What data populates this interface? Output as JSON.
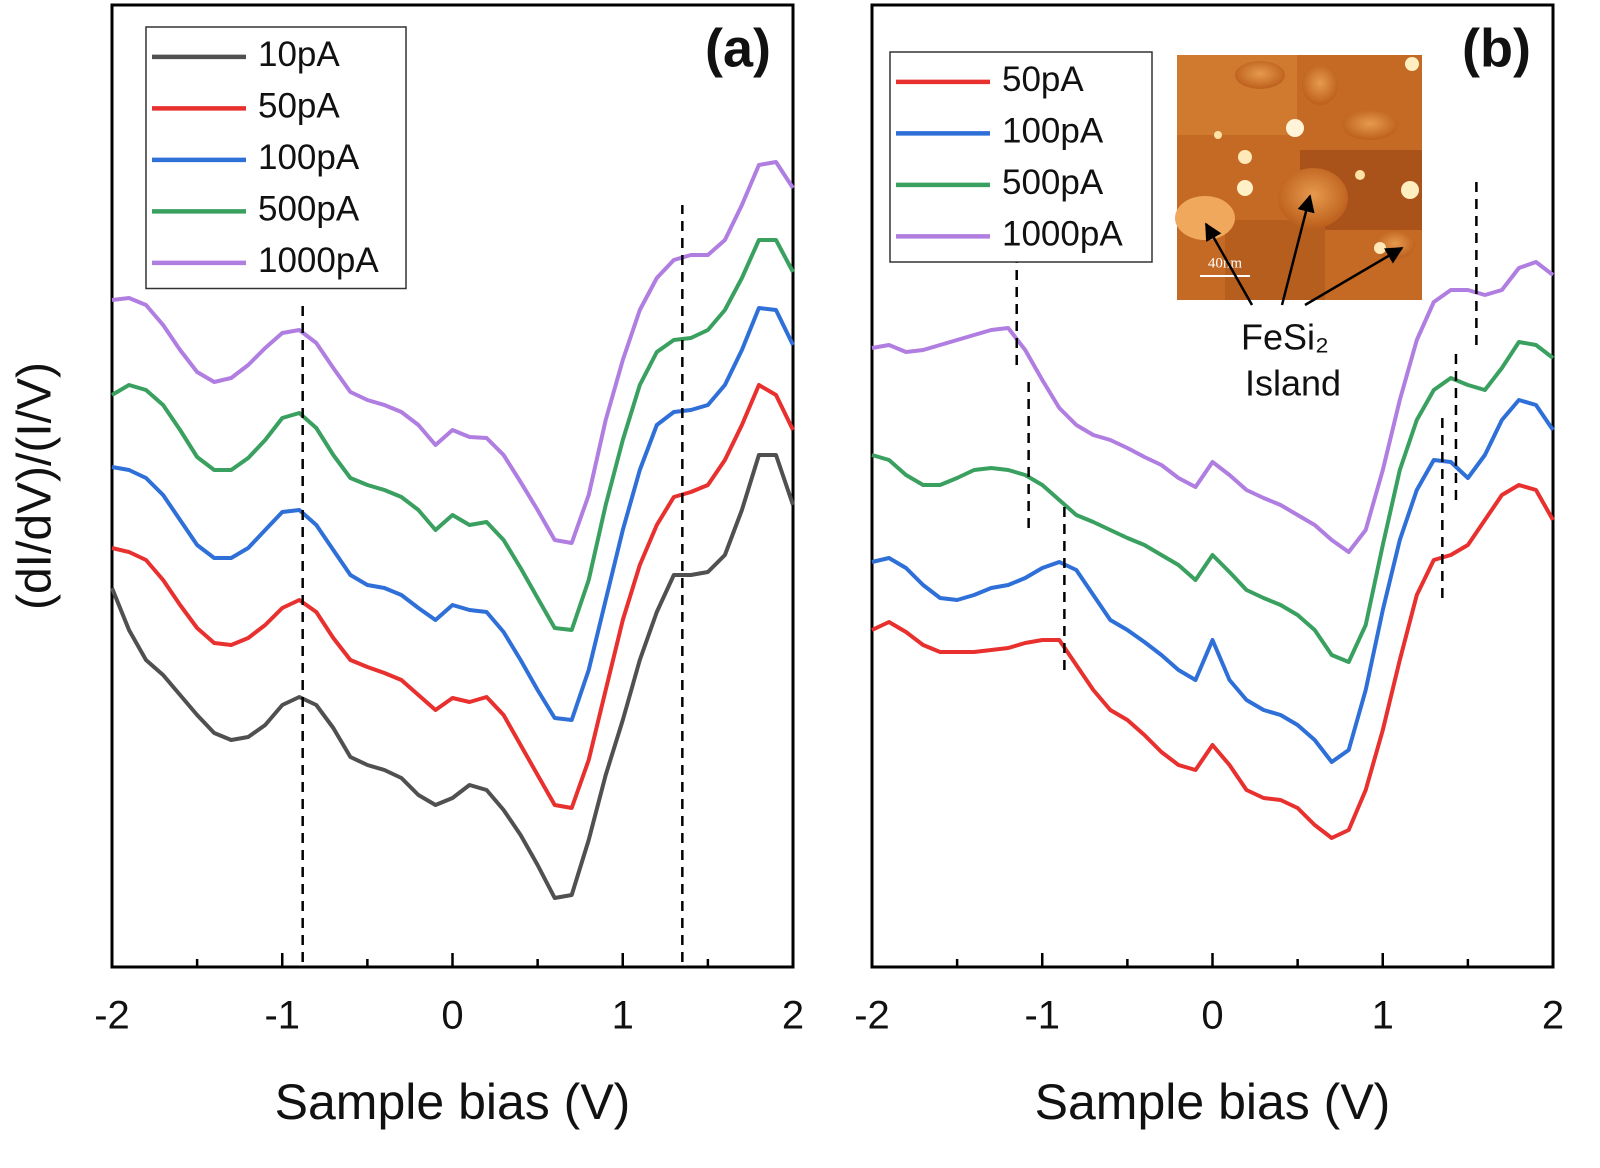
{
  "chart_data": [
    {
      "type": "line",
      "title": "(a)",
      "xlabel": "Sample bias (V)",
      "ylabel": "(dI/dV)/(I/V)",
      "xlim": [
        -2,
        2
      ],
      "ylim": [
        0,
        96.2
      ],
      "xticks": [
        -2,
        -1,
        0,
        1,
        2
      ],
      "xminor": [
        -1.5,
        -0.5,
        0.5,
        1.5
      ],
      "legend": "upper left",
      "x": [
        -2,
        -1.9,
        -1.8,
        -1.7,
        -1.6,
        -1.5,
        -1.4,
        -1.3,
        -1.2,
        -1.1,
        -1,
        -0.9,
        -0.8,
        -0.7,
        -0.6,
        -0.5,
        -0.4,
        -0.3,
        -0.2,
        -0.1,
        0,
        0.1,
        0.2,
        0.3,
        0.4,
        0.5,
        0.6,
        0.7,
        0.8,
        0.9,
        1,
        1.1,
        1.2,
        1.3,
        1.4,
        1.5,
        1.6,
        1.7,
        1.8,
        1.9,
        2
      ],
      "series": [
        {
          "name": "10pA",
          "color": "#505050",
          "values": [
            37.9,
            33.7,
            30.7,
            29.2,
            27.2,
            25.2,
            23.4,
            22.7,
            23.0,
            24.2,
            26.2,
            27.0,
            26.2,
            23.9,
            21.0,
            20.2,
            19.7,
            18.9,
            17.2,
            16.2,
            16.9,
            18.2,
            17.7,
            15.7,
            13.2,
            10.2,
            6.9,
            7.2,
            12.7,
            19.2,
            24.7,
            30.7,
            35.5,
            39.2,
            39.2,
            39.5,
            41.2,
            45.7,
            51.2,
            51.2,
            46.2
          ]
        },
        {
          "name": "50pA",
          "color": "#e8302e",
          "values": [
            41.9,
            41.5,
            40.7,
            38.7,
            36.2,
            33.9,
            32.4,
            32.2,
            32.9,
            34.2,
            35.9,
            36.7,
            35.5,
            32.9,
            30.7,
            30.0,
            29.4,
            28.7,
            27.2,
            25.7,
            26.9,
            26.5,
            27.0,
            25.2,
            22.2,
            19.2,
            16.2,
            15.9,
            20.7,
            27.7,
            34.7,
            40.2,
            44.2,
            47.0,
            47.5,
            48.2,
            50.7,
            54.2,
            58.2,
            57.2,
            53.7
          ]
        },
        {
          "name": "100pA",
          "color": "#2e6fd8",
          "values": [
            50.0,
            49.7,
            48.9,
            47.2,
            44.7,
            42.2,
            40.9,
            40.9,
            41.9,
            43.7,
            45.5,
            45.7,
            44.2,
            41.7,
            39.2,
            38.2,
            37.9,
            37.2,
            35.9,
            34.7,
            36.2,
            35.7,
            35.5,
            33.5,
            30.7,
            27.7,
            24.9,
            24.7,
            29.7,
            36.7,
            43.7,
            49.7,
            54.2,
            55.5,
            55.7,
            56.2,
            58.2,
            61.7,
            65.9,
            65.7,
            62.2
          ]
        },
        {
          "name": "500pA",
          "color": "#3aa060",
          "values": [
            57.2,
            58.2,
            57.7,
            56.2,
            53.7,
            51.0,
            49.7,
            49.7,
            50.9,
            52.7,
            54.9,
            55.4,
            53.9,
            51.2,
            48.9,
            48.2,
            47.7,
            47.0,
            45.7,
            43.7,
            45.2,
            44.2,
            44.5,
            42.7,
            39.9,
            36.9,
            33.9,
            33.7,
            38.7,
            46.2,
            52.7,
            58.2,
            61.5,
            62.7,
            62.9,
            63.7,
            65.7,
            68.9,
            72.7,
            72.7,
            69.5
          ]
        },
        {
          "name": "1000pA",
          "color": "#b07ee0",
          "values": [
            66.7,
            66.9,
            66.2,
            64.2,
            61.7,
            59.5,
            58.5,
            58.9,
            60.2,
            61.9,
            63.4,
            63.7,
            62.4,
            59.9,
            57.5,
            56.7,
            56.2,
            55.5,
            54.2,
            52.2,
            53.7,
            53.0,
            52.9,
            51.2,
            48.5,
            45.7,
            42.7,
            42.4,
            47.2,
            54.7,
            60.7,
            65.7,
            68.9,
            70.7,
            71.2,
            71.2,
            72.7,
            76.2,
            80.2,
            80.5,
            77.9
          ]
        }
      ],
      "vlines": [
        {
          "x": -0.88,
          "y": [
            0.5,
            66.2
          ]
        },
        {
          "x": 1.35,
          "y": [
            0.5,
            76.2
          ]
        }
      ]
    },
    {
      "type": "line",
      "title": "(b)",
      "xlabel": "Sample bias (V)",
      "xlim": [
        -2,
        2
      ],
      "ylim": [
        0,
        96.2
      ],
      "xticks": [
        -2,
        -1,
        0,
        1,
        2
      ],
      "xminor": [
        -1.5,
        -0.5,
        0.5,
        1.5
      ],
      "legend": "upper left",
      "x": [
        -2,
        -1.9,
        -1.8,
        -1.7,
        -1.6,
        -1.5,
        -1.4,
        -1.3,
        -1.2,
        -1.1,
        -1,
        -0.9,
        -0.8,
        -0.7,
        -0.6,
        -0.5,
        -0.4,
        -0.3,
        -0.2,
        -0.1,
        0,
        0.1,
        0.2,
        0.3,
        0.4,
        0.5,
        0.6,
        0.7,
        0.8,
        0.9,
        1,
        1.1,
        1.2,
        1.3,
        1.4,
        1.5,
        1.6,
        1.7,
        1.8,
        1.9,
        2
      ],
      "series": [
        {
          "name": "50pA",
          "color": "#e8302e",
          "values": [
            33.7,
            34.5,
            33.5,
            32.2,
            31.5,
            31.5,
            31.5,
            31.7,
            31.9,
            32.4,
            32.7,
            32.7,
            30.2,
            27.7,
            25.7,
            24.7,
            23.2,
            21.5,
            20.2,
            19.7,
            22.2,
            20.2,
            17.7,
            16.9,
            16.7,
            15.9,
            14.2,
            12.9,
            13.7,
            17.7,
            23.7,
            30.7,
            37.2,
            40.7,
            41.2,
            42.2,
            44.7,
            47.2,
            48.2,
            47.7,
            44.7
          ]
        },
        {
          "name": "100pA",
          "color": "#2e6fd8",
          "values": [
            40.5,
            40.9,
            39.9,
            38.2,
            36.9,
            36.7,
            37.2,
            37.9,
            38.2,
            38.9,
            39.9,
            40.5,
            39.7,
            37.2,
            34.7,
            33.7,
            32.5,
            31.2,
            29.7,
            28.7,
            32.7,
            28.7,
            26.7,
            25.7,
            25.2,
            24.2,
            22.7,
            20.5,
            21.7,
            27.7,
            35.7,
            42.7,
            47.7,
            50.7,
            50.5,
            48.9,
            51.2,
            54.7,
            56.7,
            56.2,
            53.7
          ]
        },
        {
          "name": "500pA",
          "color": "#3aa060",
          "values": [
            51.2,
            50.7,
            49.2,
            48.2,
            48.2,
            48.9,
            49.7,
            49.9,
            49.7,
            49.2,
            48.2,
            46.7,
            45.2,
            44.5,
            43.7,
            42.9,
            42.2,
            41.2,
            40.2,
            38.7,
            41.2,
            39.5,
            37.7,
            36.9,
            36.2,
            35.2,
            33.7,
            31.2,
            30.5,
            34.2,
            42.2,
            49.7,
            54.7,
            57.7,
            58.9,
            58.2,
            57.7,
            59.9,
            62.5,
            62.2,
            60.9
          ]
        },
        {
          "name": "1000pA",
          "color": "#b07ee0",
          "values": [
            61.9,
            62.2,
            61.5,
            61.7,
            62.2,
            62.7,
            63.2,
            63.7,
            63.9,
            61.7,
            58.7,
            55.9,
            54.2,
            53.2,
            52.7,
            51.9,
            51.0,
            50.2,
            48.9,
            48.0,
            50.5,
            49.2,
            47.7,
            46.9,
            46.2,
            45.2,
            44.2,
            42.7,
            41.5,
            43.7,
            49.7,
            56.7,
            62.7,
            66.5,
            67.7,
            67.7,
            67.2,
            67.7,
            69.9,
            70.5,
            69.2
          ]
        }
      ],
      "vlines": [
        {
          "x": -1.15,
          "y": [
            60.2,
            74.2
          ]
        },
        {
          "x": -1.08,
          "y": [
            43.9,
            58.7
          ]
        },
        {
          "x": -0.87,
          "y": [
            29.7,
            46.7
          ]
        },
        {
          "x": 1.55,
          "y": [
            62.2,
            78.9
          ]
        },
        {
          "x": 1.43,
          "y": [
            46.7,
            61.7
          ]
        },
        {
          "x": 1.35,
          "y": [
            36.9,
            55.3
          ]
        }
      ],
      "inset_scale": "40nm",
      "annotations": [
        "FeSi₂",
        "Island"
      ]
    }
  ]
}
